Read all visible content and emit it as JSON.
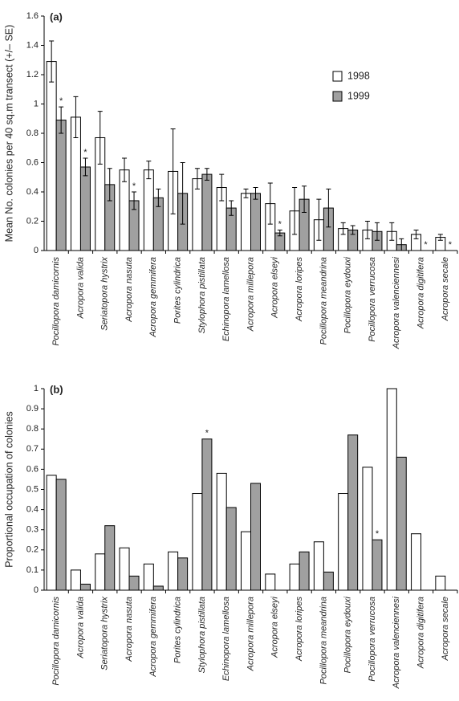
{
  "chart_data": [
    {
      "type": "bar",
      "title": "(a)",
      "y_label": "Mean No. colonies per 40 sq.m transect (+/– SE)",
      "categories": [
        "Pocillopora damicornis",
        "Acropora valida",
        "Seriatopora hystrix",
        "Acropora nasuta",
        "Acropora gemmifera",
        "Porites cylindrica",
        "Stylophora pistillata",
        "Echinopora lamellosa",
        "Acropora millepora",
        "Acropora elseyi",
        "Acropora loripes",
        "Pocillopora meandrina",
        "Pocillopora eydouxi",
        "Pocillopora verrucosa",
        "Acropora valenciennesi",
        "Acropora digitifera",
        "Acropora secale"
      ],
      "series": [
        {
          "name": "1998",
          "color": "#ffffff",
          "values": [
            1.29,
            0.91,
            0.77,
            0.55,
            0.55,
            0.54,
            0.49,
            0.43,
            0.39,
            0.32,
            0.27,
            0.21,
            0.15,
            0.14,
            0.13,
            0.11,
            0.09
          ],
          "errors": [
            0.14,
            0.14,
            0.18,
            0.08,
            0.06,
            0.29,
            0.07,
            0.09,
            0.03,
            0.14,
            0.16,
            0.14,
            0.04,
            0.06,
            0.06,
            0.03,
            0.02
          ],
          "annotations": [
            null,
            null,
            null,
            null,
            null,
            null,
            null,
            null,
            null,
            null,
            null,
            null,
            null,
            null,
            null,
            null,
            null
          ]
        },
        {
          "name": "1999",
          "color": "#a0a0a0",
          "values": [
            0.89,
            0.57,
            0.45,
            0.34,
            0.36,
            0.39,
            0.52,
            0.29,
            0.39,
            0.12,
            0.35,
            0.29,
            0.14,
            0.13,
            0.04,
            null,
            null
          ],
          "errors": [
            0.09,
            0.06,
            0.11,
            0.06,
            0.06,
            0.21,
            0.04,
            0.05,
            0.04,
            0.02,
            0.09,
            0.13,
            0.03,
            0.06,
            0.04,
            null,
            null
          ],
          "annotations": [
            "*",
            "*",
            null,
            "*",
            null,
            null,
            null,
            null,
            null,
            "*",
            null,
            null,
            null,
            null,
            null,
            "*",
            "*"
          ]
        }
      ],
      "ylim": [
        0,
        1.6
      ],
      "yticks": [
        0,
        0.2,
        0.4,
        0.6,
        0.8,
        1,
        1.2,
        1.4,
        1.6
      ],
      "legend": "upper-right"
    },
    {
      "type": "bar",
      "title": "(b)",
      "y_label": "Proportional occupation of colonies",
      "categories": [
        "Pocillopora damicornis",
        "Acropora valida",
        "Seriatopora hystrix",
        "Acropora nasuta",
        "Acropora gemmifera",
        "Porites cylindrica",
        "Stylophora pistillata",
        "Echinopora lamellosa",
        "Acropora millepora",
        "Acropora elseyi",
        "Acropora loripes",
        "Pocillopora meandrina",
        "Pocillopora eydouxi",
        "Pocillopora verrucosa",
        "Acropora valenciennesi",
        "Acropora digitifera",
        "Acropora secale"
      ],
      "series": [
        {
          "color": "#ffffff",
          "values": [
            0.57,
            0.1,
            0.18,
            0.21,
            0.13,
            0.19,
            0.48,
            0.58,
            0.29,
            0.08,
            0.13,
            0.24,
            0.48,
            0.61,
            1.0,
            0.28,
            0.07
          ],
          "annotations": [
            null,
            null,
            null,
            null,
            null,
            null,
            null,
            null,
            null,
            null,
            null,
            null,
            null,
            null,
            null,
            null,
            null
          ]
        },
        {
          "color": "#a0a0a0",
          "values": [
            0.55,
            0.03,
            0.32,
            0.07,
            0.02,
            0.16,
            0.75,
            0.41,
            0.53,
            null,
            0.19,
            0.09,
            0.77,
            0.25,
            0.66,
            null,
            null
          ],
          "annotations": [
            null,
            null,
            null,
            null,
            null,
            null,
            "*",
            null,
            null,
            null,
            null,
            null,
            null,
            "*",
            null,
            null,
            null
          ]
        }
      ],
      "ylim": [
        0,
        1
      ],
      "yticks": [
        0,
        0.1,
        0.2,
        0.3,
        0.4,
        0.5,
        0.6,
        0.7,
        0.8,
        0.9,
        1
      ]
    }
  ]
}
